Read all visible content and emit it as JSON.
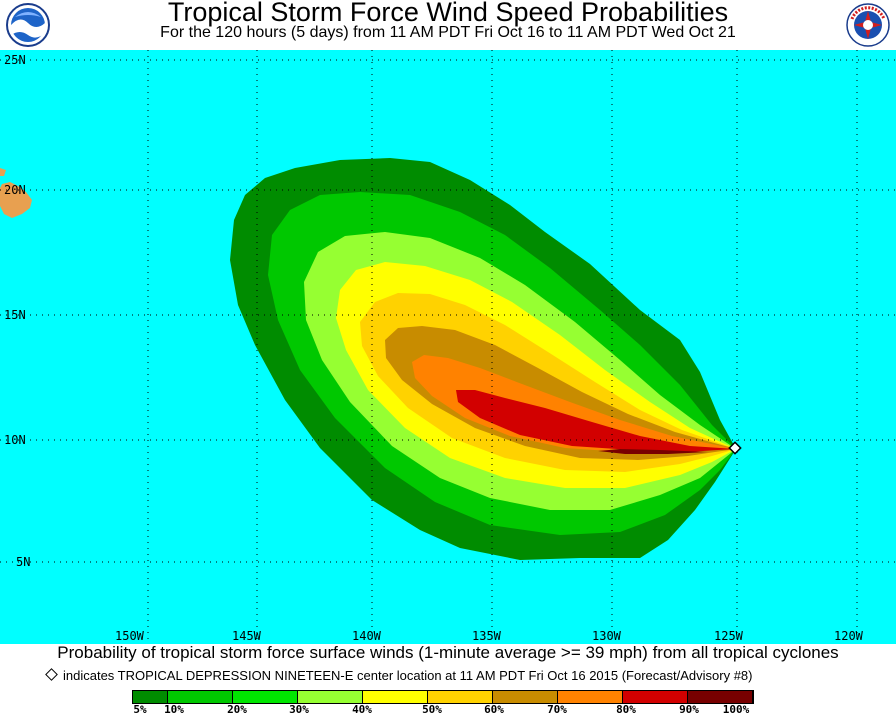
{
  "header": {
    "title": "Tropical Storm Force Wind Speed Probabilities",
    "subtitle": "For the 120 hours (5 days) from 11 AM PDT Fri Oct 16 to 11 AM PDT Wed Oct 21",
    "logo_left_text": "NOAA",
    "logo_right_text": "NATIONAL WEATHER SERVICE"
  },
  "map": {
    "latitude_labels": [
      "25N",
      "20N",
      "15N",
      "10N",
      "5N"
    ],
    "longitude_labels": [
      "150W",
      "145W",
      "140W",
      "135W",
      "130W",
      "125W",
      "120W"
    ],
    "ocean_color": "#00ffff",
    "land_color": "#e8a050",
    "storm_center": {
      "name": "TROPICAL DEPRESSION NINETEEN-E",
      "lat": 9.5,
      "lon": -124.9
    }
  },
  "footer": {
    "caption": "Probability of tropical storm force surface winds (1-minute average >= 39 mph) from all tropical cyclones",
    "center_note": "indicates TROPICAL DEPRESSION NINETEEN-E center location at 11 AM PDT Fri Oct 16 2015 (Forecast/Advisory #8)"
  },
  "legend": {
    "labels": [
      "5%",
      "10%",
      "20%",
      "30%",
      "40%",
      "50%",
      "60%",
      "70%",
      "80%",
      "90%",
      "100%"
    ],
    "colors": [
      "#008c00",
      "#00c800",
      "#00e600",
      "#96ff32",
      "#ffff00",
      "#ffd200",
      "#c88c00",
      "#ff8200",
      "#d20000",
      "#780000",
      "#b400b4"
    ]
  }
}
